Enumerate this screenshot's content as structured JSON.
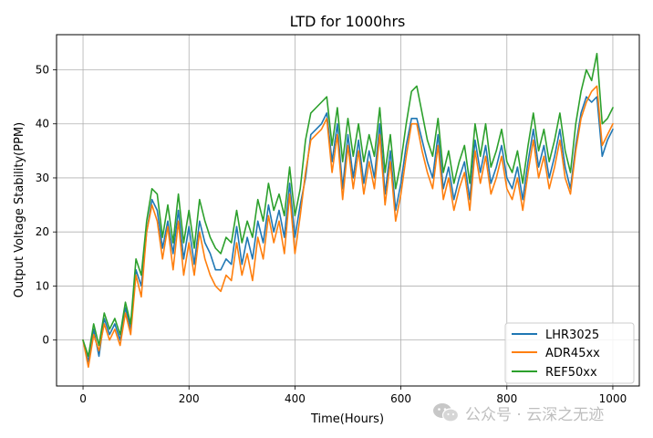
{
  "chart_data": {
    "type": "line",
    "title": "LTD for 1000hrs",
    "xlabel": "Time(Hours)",
    "ylabel": "Output Voltage Stability(PPM)",
    "xlim": [
      -50,
      1050
    ],
    "ylim": [
      -8.5,
      56.5
    ],
    "xticks": [
      0,
      200,
      400,
      600,
      800,
      1000
    ],
    "yticks": [
      0,
      10,
      20,
      30,
      40,
      50
    ],
    "grid": true,
    "legend_position": "bottom-right",
    "x": [
      0,
      10,
      20,
      30,
      40,
      50,
      60,
      70,
      80,
      90,
      100,
      110,
      120,
      130,
      140,
      150,
      160,
      170,
      180,
      190,
      200,
      210,
      220,
      230,
      240,
      250,
      260,
      270,
      280,
      290,
      300,
      310,
      320,
      330,
      340,
      350,
      360,
      370,
      380,
      390,
      400,
      410,
      420,
      430,
      440,
      450,
      460,
      470,
      480,
      490,
      500,
      510,
      520,
      530,
      540,
      550,
      560,
      570,
      580,
      590,
      600,
      610,
      620,
      630,
      640,
      650,
      660,
      670,
      680,
      690,
      700,
      710,
      720,
      730,
      740,
      750,
      760,
      770,
      780,
      790,
      800,
      810,
      820,
      830,
      840,
      850,
      860,
      870,
      880,
      890,
      900,
      910,
      920,
      930,
      940,
      950,
      960,
      970,
      980,
      990,
      1000
    ],
    "series": [
      {
        "name": "LHR3025",
        "color": "#1f77b4",
        "values": [
          0,
          -4,
          2,
          -3,
          4,
          1,
          3,
          0,
          6,
          2,
          13,
          10,
          20,
          26,
          24,
          17,
          22,
          16,
          24,
          15,
          21,
          14,
          22,
          18,
          16,
          13,
          13,
          15,
          14,
          21,
          14,
          19,
          15,
          22,
          18,
          25,
          20,
          24,
          19,
          29,
          19,
          25,
          30,
          38,
          39,
          40,
          42,
          33,
          40,
          28,
          38,
          30,
          37,
          29,
          35,
          30,
          40,
          27,
          35,
          24,
          29,
          36,
          41,
          41,
          37,
          33,
          30,
          38,
          28,
          32,
          26,
          30,
          33,
          26,
          37,
          31,
          36,
          29,
          32,
          36,
          30,
          28,
          32,
          26,
          33,
          39,
          32,
          36,
          30,
          34,
          39,
          32,
          28,
          36,
          42,
          45,
          44,
          45,
          34,
          37,
          39
        ]
      },
      {
        "name": "ADR45xx",
        "color": "#ff7f0e",
        "values": [
          0,
          -5,
          1,
          -2,
          3,
          0,
          2,
          -1,
          5,
          1,
          12,
          8,
          20,
          25,
          22,
          15,
          21,
          13,
          22,
          12,
          18,
          12,
          20,
          15,
          12,
          10,
          9,
          12,
          11,
          18,
          12,
          16,
          11,
          19,
          15,
          23,
          18,
          22,
          16,
          27,
          16,
          23,
          31,
          37,
          38,
          39,
          41,
          31,
          38,
          26,
          36,
          28,
          35,
          27,
          33,
          28,
          38,
          25,
          33,
          22,
          27,
          34,
          40,
          40,
          35,
          31,
          28,
          36,
          26,
          30,
          24,
          28,
          31,
          24,
          35,
          29,
          34,
          27,
          30,
          34,
          28,
          26,
          30,
          24,
          31,
          37,
          30,
          34,
          28,
          32,
          37,
          30,
          27,
          35,
          41,
          44,
          46,
          47,
          36,
          38,
          40
        ]
      },
      {
        "name": "REF50xx",
        "color": "#2ca02c",
        "values": [
          0,
          -3,
          3,
          -1,
          5,
          2,
          4,
          1,
          7,
          3,
          15,
          12,
          22,
          28,
          27,
          19,
          25,
          18,
          27,
          18,
          24,
          17,
          26,
          22,
          19,
          17,
          16,
          19,
          18,
          24,
          18,
          22,
          19,
          26,
          22,
          29,
          24,
          27,
          23,
          32,
          23,
          28,
          37,
          42,
          43,
          44,
          45,
          36,
          43,
          33,
          41,
          34,
          40,
          33,
          38,
          34,
          43,
          31,
          38,
          28,
          33,
          40,
          46,
          47,
          42,
          37,
          34,
          41,
          31,
          35,
          29,
          33,
          36,
          29,
          40,
          34,
          40,
          32,
          35,
          39,
          33,
          31,
          35,
          29,
          36,
          42,
          35,
          39,
          33,
          37,
          42,
          35,
          31,
          40,
          46,
          50,
          48,
          53,
          40,
          41,
          43
        ]
      }
    ]
  },
  "watermark": {
    "icon": "wechat-icon",
    "text": "公众号 · 云深之无迹"
  }
}
